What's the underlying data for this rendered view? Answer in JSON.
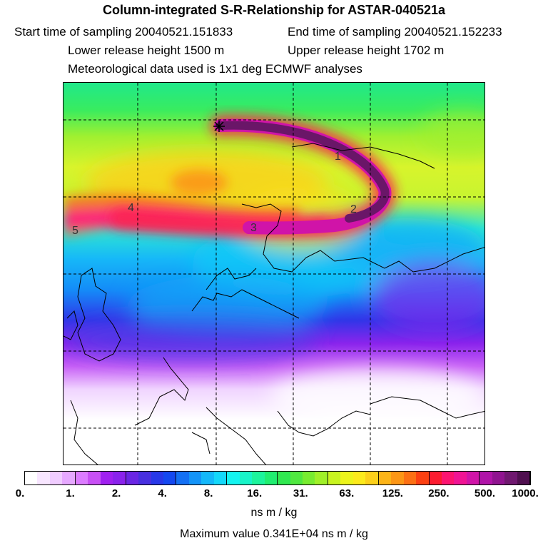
{
  "header": {
    "title": "Column-integrated S-R-Relationship for ASTAR-040521a",
    "start_time": "Start time of sampling 20040521.151833",
    "end_time": "End time of sampling 20040521.152233",
    "lower_height": "Lower release height 1500 m",
    "upper_height": "Upper release height 1702 m",
    "met_data": "Meteorological data used is 1x1 deg ECMWF analyses"
  },
  "map": {
    "contour_labels": [
      "1",
      "2",
      "3",
      "4",
      "5"
    ],
    "release_marker": "star-marker"
  },
  "legend": {
    "ticks": [
      "0.",
      "1.",
      "2.",
      "4.",
      "8.",
      "16.",
      "31.",
      "63.",
      "125.",
      "250.",
      "500.",
      "1000."
    ],
    "unit": "ns m / kg",
    "colors": [
      "#ffffff",
      "#f8e6ff",
      "#f0ccff",
      "#e6a8ff",
      "#dc7cff",
      "#c850f5",
      "#a020f0",
      "#8a22ec",
      "#6a26e4",
      "#4830e0",
      "#2838e8",
      "#1448f0",
      "#1470f4",
      "#1494f8",
      "#14b8fa",
      "#14d8fa",
      "#14f4f0",
      "#18f4c8",
      "#1cf49c",
      "#20ee70",
      "#30e850",
      "#50e840",
      "#78ec30",
      "#a0f028",
      "#c8f420",
      "#ecf41c",
      "#fcea1c",
      "#fcd01a",
      "#fcb418",
      "#fc9616",
      "#fc7014",
      "#fc4012",
      "#fc1c30",
      "#fc1470",
      "#f01494",
      "#d014a8",
      "#b014a8",
      "#901490",
      "#701870",
      "#501050"
    ],
    "max_value": "Maximum value  0.341E+04 ns m / kg"
  }
}
